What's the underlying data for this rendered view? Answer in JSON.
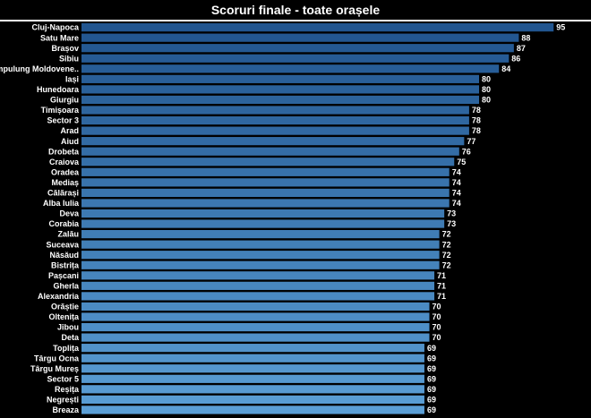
{
  "chart_data": {
    "type": "bar",
    "orientation": "horizontal",
    "title": "Scoruri finale - toate orașele",
    "categories": [
      "Cluj-Napoca",
      "Satu Mare",
      "Brașov",
      "Sibiu",
      "Câmpulung Moldovene..",
      "Iași",
      "Hunedoara",
      "Giurgiu",
      "Timișoara",
      "Sector 3",
      "Arad",
      "Aiud",
      "Drobeta",
      "Craiova",
      "Oradea",
      "Mediaș",
      "Călărași",
      "Alba Iulia",
      "Deva",
      "Corabia",
      "Zalău",
      "Suceava",
      "Năsăud",
      "Bistrița",
      "Pașcani",
      "Gherla",
      "Alexandria",
      "Orăștie",
      "Oltenița",
      "Jibou",
      "Deta",
      "Toplița",
      "Târgu Ocna",
      "Târgu Mureș",
      "Sector 5",
      "Reșița",
      "Negrești",
      "Breaza"
    ],
    "values": [
      95,
      88,
      87,
      86,
      84,
      80,
      80,
      80,
      78,
      78,
      78,
      77,
      76,
      75,
      74,
      74,
      74,
      74,
      73,
      73,
      72,
      72,
      72,
      72,
      71,
      71,
      71,
      70,
      70,
      70,
      70,
      69,
      69,
      69,
      69,
      69,
      69,
      69
    ],
    "xlim": [
      0,
      100
    ],
    "colors": {
      "bar_dark": "#21558f",
      "bar_light": "#5b9fd6",
      "background": "#000000",
      "text": "#ffffff"
    },
    "grid": false
  }
}
